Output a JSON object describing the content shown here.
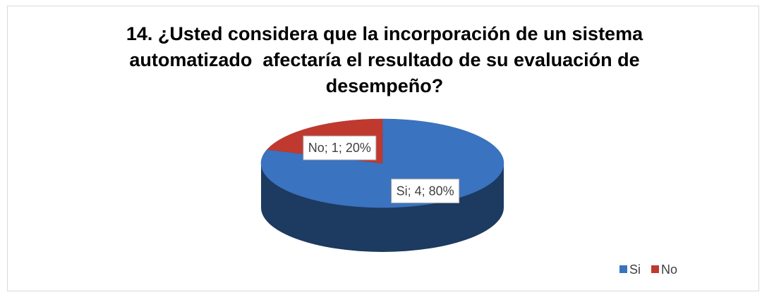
{
  "chart_data": {
    "type": "pie",
    "title": "14. ¿Usted considera que la incorporación de un sistema automatizado  afectaría el resultado de su evaluación de desempeño?",
    "categories": [
      "Si",
      "No"
    ],
    "values": [
      4,
      1
    ],
    "value_labels": [
      "Si; 4; 80%",
      "No; 1; 20%"
    ],
    "colors": [
      "#3a73c0",
      "#c0392f"
    ],
    "legend": "bottom-right",
    "style": "3d"
  }
}
